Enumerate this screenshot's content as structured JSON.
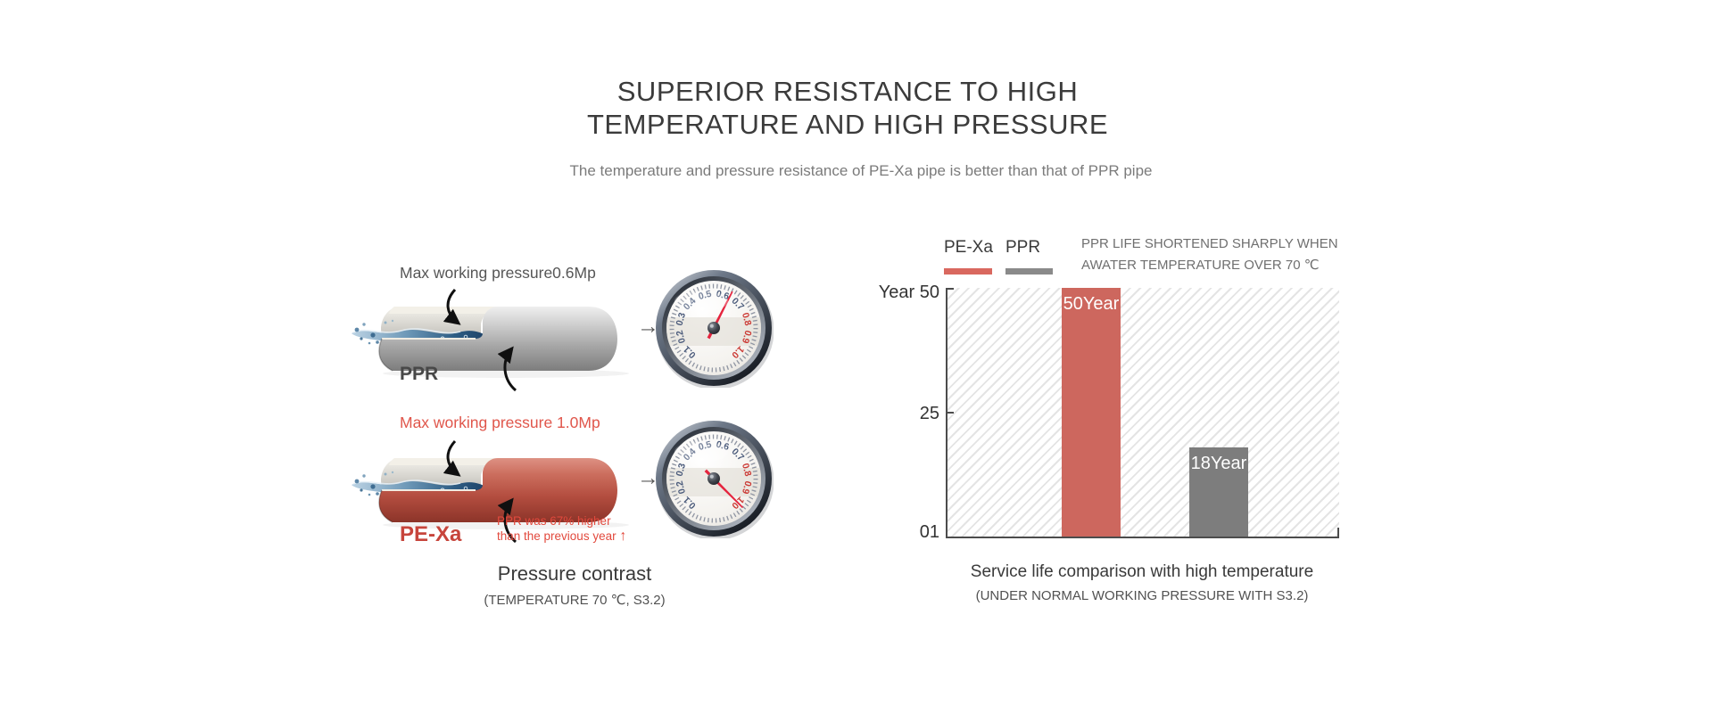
{
  "header": {
    "title_line1": "SUPERIOR RESISTANCE TO HIGH",
    "title_line2": "TEMPERATURE AND HIGH PRESSURE",
    "subtitle": "The temperature and pressure resistance of PE-Xa pipe is better than that of PPR pipe"
  },
  "icons": {
    "right_arrow": "→",
    "up_arrow": "↑"
  },
  "left_panel": {
    "ppr_pressure_label": "Max working pressure0.6Mp",
    "ppr_pipe_label": "PPR",
    "pexa_pressure_label": "Max working pressure 1.0Mp",
    "pexa_pipe_label": "PE-Xa",
    "pexa_note_line1": "PPR was 67% higher",
    "pexa_note_line2": "than the previous year ",
    "caption": "Pressure contrast",
    "subcaption": "(TEMPERATURE 70 ℃, S3.2)",
    "gauge_ppr": {
      "numbers": [
        "0.1",
        "0.2",
        "0.3",
        "0.4",
        "0.5",
        "0.6",
        "0.7",
        "0.8",
        "0.9",
        "1.0"
      ]
    },
    "gauge_pexa": {
      "numbers": [
        "0.1",
        "0.2",
        "0.3",
        "0.4",
        "0.5",
        "0.6",
        "0.7",
        "0.8",
        "0.9",
        "1.0"
      ]
    }
  },
  "right_panel": {
    "legend": {
      "pexa_label": "PE-Xa",
      "ppr_label": "PPR"
    },
    "note_line1": "PPR LIFE SHORTENED SHARPLY WHEN",
    "note_line2": "AWATER TEMPERATURE OVER 70 ℃",
    "y_axis_unit": "Year",
    "y_tick_top": "50",
    "y_tick_mid": "25",
    "y_tick_bottom": "01",
    "caption": "Service life comparison with high temperature",
    "subcaption": "(UNDER NORMAL WORKING PRESSURE WITH S3.2)"
  },
  "colors": {
    "accent_red": "#cd675e",
    "bar_gray": "#7d7d7d",
    "legend_red": "#d9685f",
    "legend_gray": "#8a8a8a",
    "needle_red": "#e5243e",
    "ppr_pipe_gray": "#a8a8a8",
    "pexa_pipe_red": "#b34d3f",
    "hatch_line": "#e4e4e4"
  },
  "chart_data": {
    "type": "bar",
    "categories": [
      "PE-Xa",
      "PPR"
    ],
    "values": [
      50,
      18
    ],
    "bar_labels": [
      "50Year",
      "18Year"
    ],
    "bar_colors": [
      "#cd675e",
      "#7d7d7d"
    ],
    "title": "Service life comparison with high temperature",
    "subtitle": "(UNDER NORMAL WORKING PRESSURE WITH S3.2)",
    "ylabel": "Year",
    "ylim": [
      0,
      50
    ],
    "ytick_labels": [
      "01",
      "25",
      "50"
    ],
    "legend_position": "top-left",
    "grid": "diagonal-hatch plot background",
    "annotation": "PPR LIFE SHORTENED SHARPLY WHEN AWATER TEMPERATURE OVER 70 ℃"
  }
}
